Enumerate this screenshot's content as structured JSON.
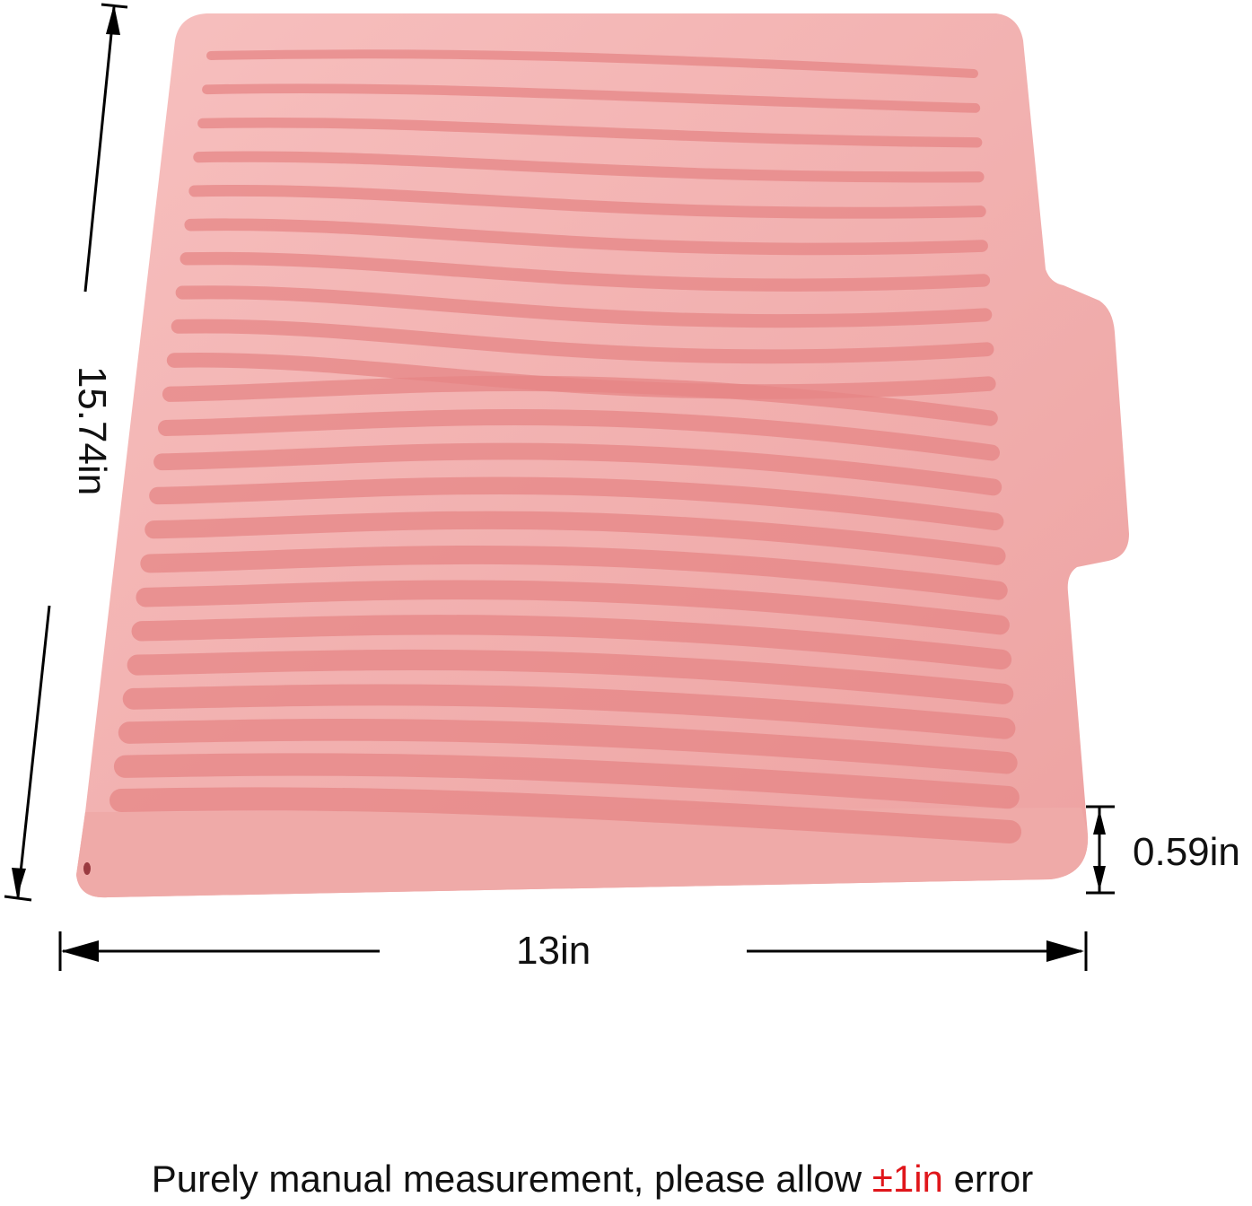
{
  "dimensions": {
    "length": "15.74in",
    "width": "13in",
    "height": "0.59in"
  },
  "note": {
    "text_before": "Purely manual measurement, please allow ",
    "tolerance": "±1in",
    "text_after": " error"
  },
  "colors": {
    "mat": "#f2a9a8",
    "mat_rim": "#f6bcba",
    "ridge": "#e58686",
    "tolerance": "#e0161b",
    "arrows": "#000000"
  }
}
